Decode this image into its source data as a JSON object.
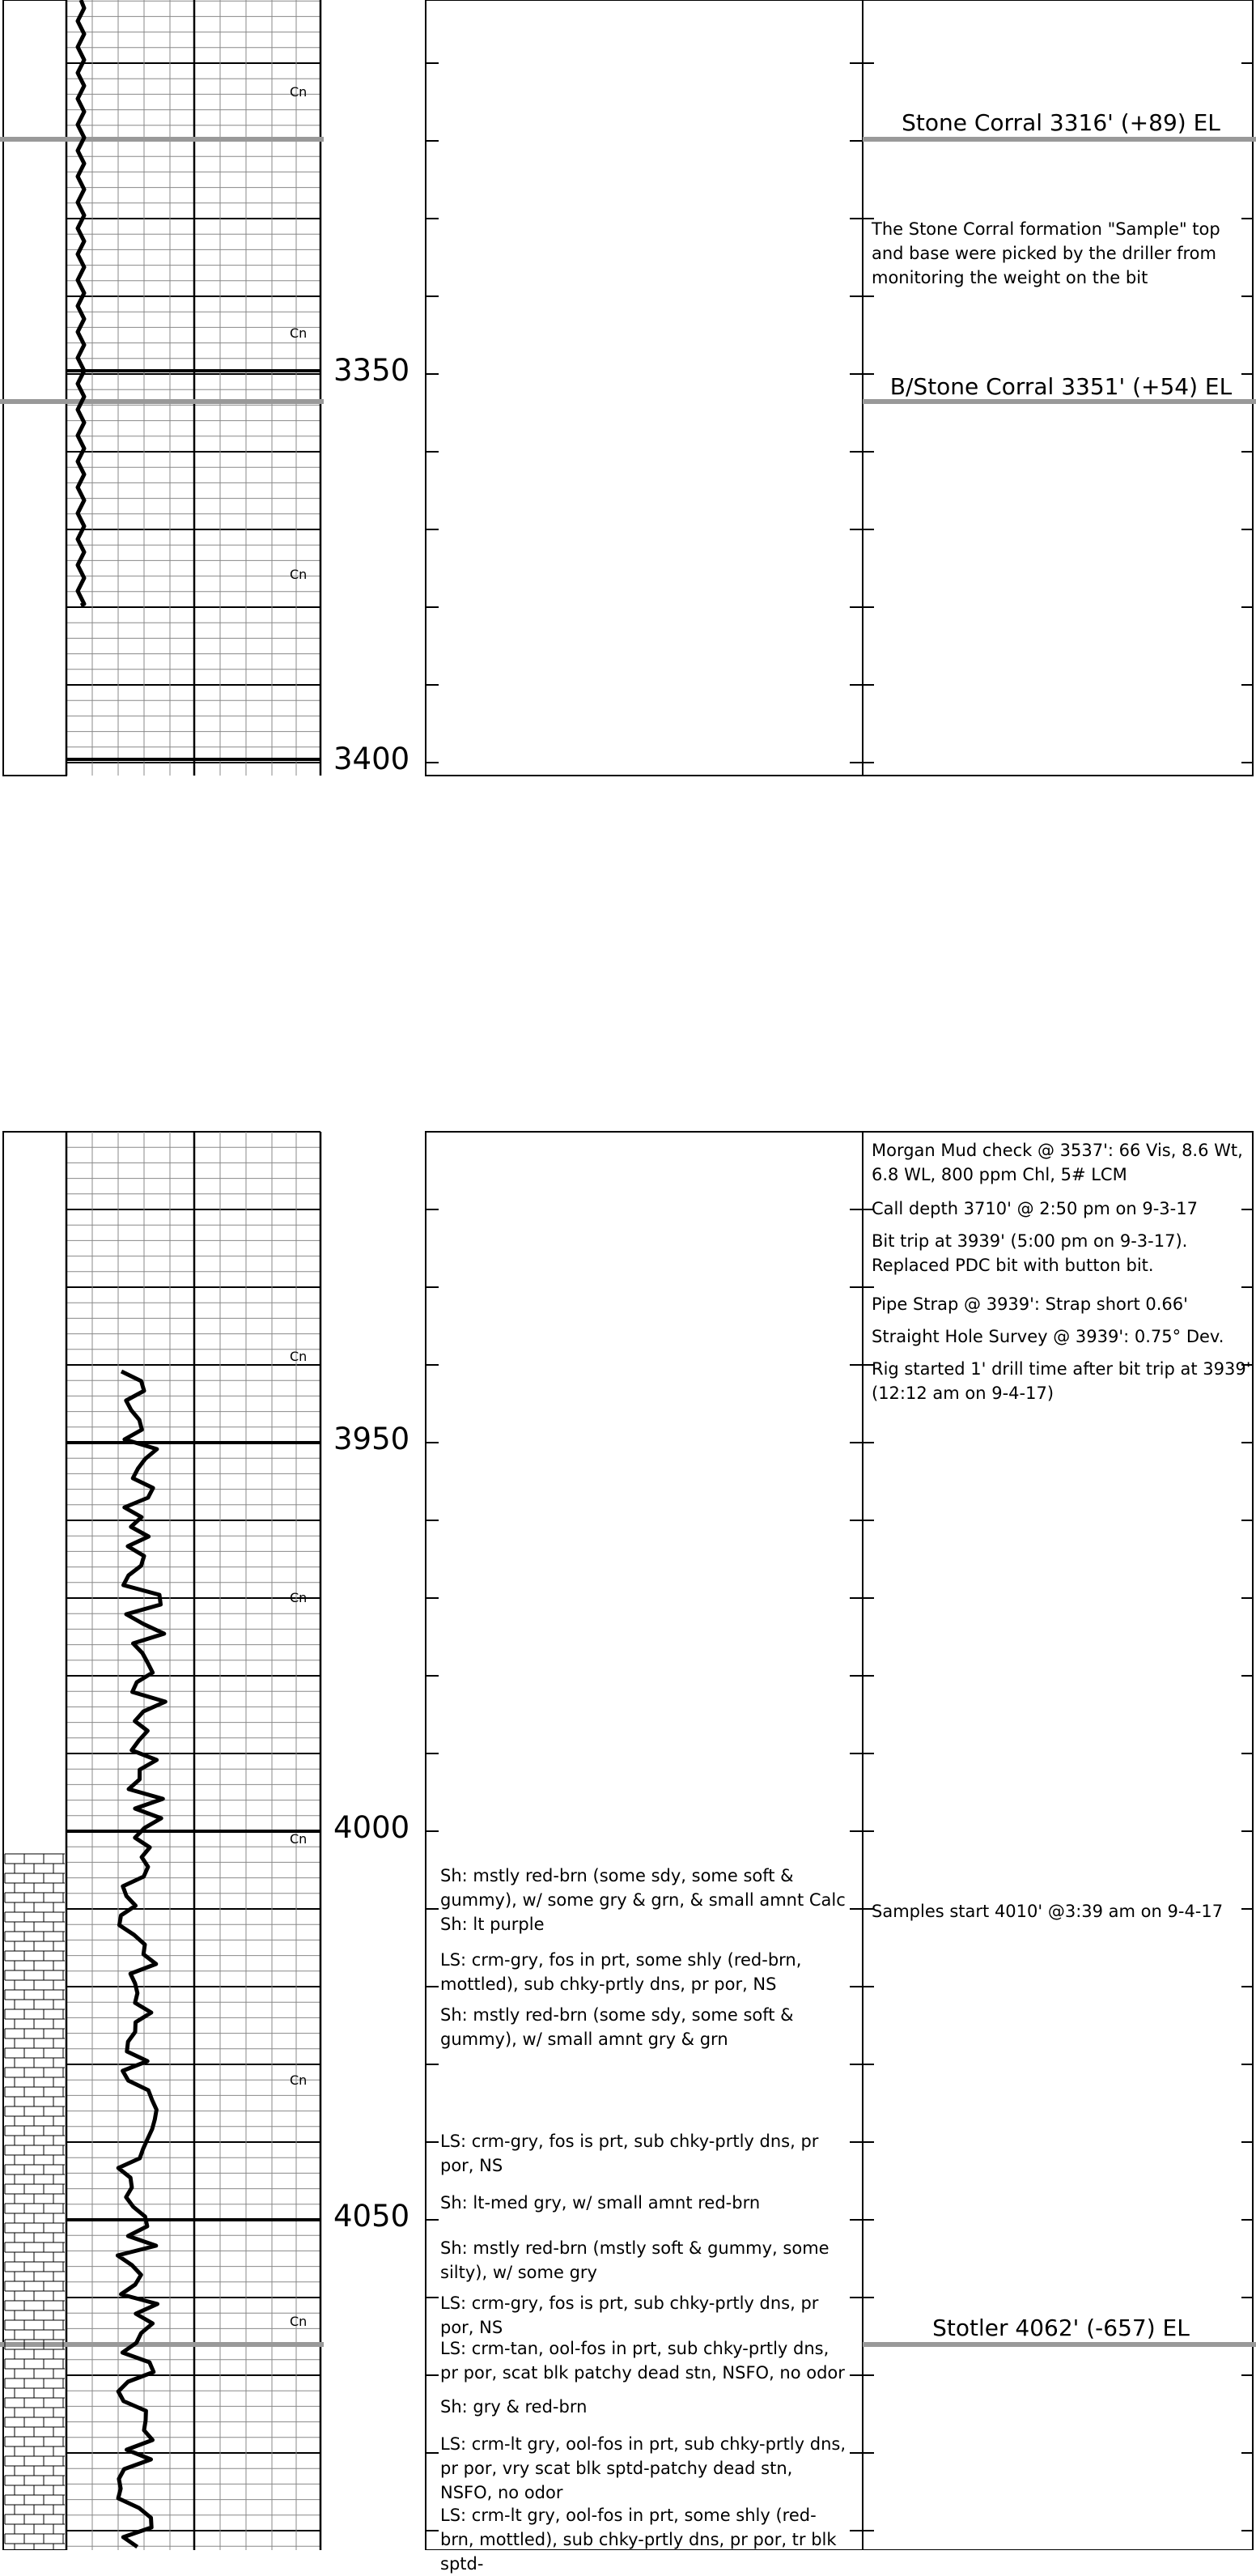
{
  "panel1": {
    "depth_labels": [
      "3350",
      "3400"
    ],
    "gas_marker": "Cn",
    "formation_tops": [
      {
        "label": "Stone Corral  3316' (+89) EL"
      },
      {
        "label": "B/Stone Corral  3351' (+54) EL"
      }
    ],
    "remark": "The Stone Corral formation \"Sample\" top and base were picked by the driller from monitoring the weight on the bit"
  },
  "panel2": {
    "depth_labels": [
      "3950",
      "4000",
      "4050"
    ],
    "gas_marker": "Cn",
    "remarks": [
      "Morgan Mud check @ 3537':   66 Vis, 8.6 Wt,  6.8 WL,  800 ppm Chl,  5# LCM",
      "Call depth 3710' @ 2:50 pm on 9-3-17",
      "Bit trip at 3939' (5:00 pm on 9-3-17). Replaced PDC bit with button bit.",
      "Pipe Strap @ 3939':  Strap short 0.66'",
      "Straight Hole Survey @ 3939':  0.75° Dev.",
      "Rig started 1' drill time after bit trip at 3939' (12:12 am on 9-4-17)",
      "Samples start 4010' @3:39 am on 9-4-17"
    ],
    "formation_tops": [
      {
        "label": "Stotler  4062' (-657) EL"
      }
    ],
    "lithology_descriptions": [
      "Sh: mstly red-brn (some sdy, some soft & gummy), w/ some gry & grn, & small amnt Calc Sh: lt purple",
      "LS: crm-gry, fos in prt, some shly (red-brn, mottled), sub chky-prtly dns, pr por, NS",
      "Sh: mstly red-brn (some sdy, some soft & gummy), w/ small amnt gry & grn",
      "LS: crm-gry, fos is prt, sub chky-prtly dns, pr por, NS",
      "Sh: lt-med gry, w/ small amnt red-brn",
      "Sh: mstly red-brn (mstly soft & gummy, some silty), w/ some gry",
      "LS: crm-gry, fos is prt, sub chky-prtly dns, pr por, NS",
      "LS: crm-tan, ool-fos in prt, sub chky-prtly dns, pr por, scat blk patchy dead stn, NSFO, no odor",
      "Sh: gry & red-brn",
      "LS: crm-lt gry, ool-fos in prt, sub chky-prtly dns, pr por, vry scat blk sptd-patchy dead stn, NSFO, no odor",
      "LS: crm-lt gry, ool-fos in prt, some shly (red-brn, mottled), sub chky-prtly dns, pr por, tr blk sptd-"
    ]
  }
}
